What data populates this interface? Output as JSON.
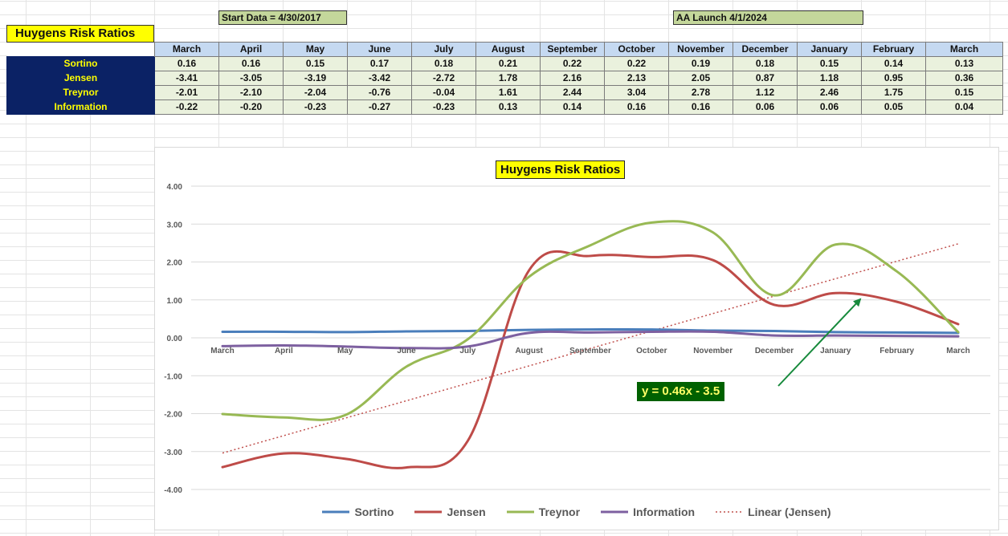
{
  "header": {
    "start_note": "Start Data = 4/30/2017",
    "launch_note": "AA Launch 4/1/2024",
    "sheet_title": "Huygens Risk Ratios"
  },
  "table": {
    "months": [
      "March",
      "April",
      "May",
      "June",
      "July",
      "August",
      "September",
      "October",
      "November",
      "December",
      "January",
      "February",
      "March"
    ],
    "rows": [
      {
        "label": "Sortino",
        "values": [
          "0.16",
          "0.16",
          "0.15",
          "0.17",
          "0.18",
          "0.21",
          "0.22",
          "0.22",
          "0.19",
          "0.18",
          "0.15",
          "0.14",
          "0.13"
        ]
      },
      {
        "label": "Jensen",
        "values": [
          "-3.41",
          "-3.05",
          "-3.19",
          "-3.42",
          "-2.72",
          "1.78",
          "2.16",
          "2.13",
          "2.05",
          "0.87",
          "1.18",
          "0.95",
          "0.36"
        ]
      },
      {
        "label": "Treynor",
        "values": [
          "-2.01",
          "-2.10",
          "-2.04",
          "-0.76",
          "-0.04",
          "1.61",
          "2.44",
          "3.04",
          "2.78",
          "1.12",
          "2.46",
          "1.75",
          "0.15"
        ]
      },
      {
        "label": "Information",
        "values": [
          "-0.22",
          "-0.20",
          "-0.23",
          "-0.27",
          "-0.23",
          "0.13",
          "0.14",
          "0.16",
          "0.16",
          "0.06",
          "0.06",
          "0.05",
          "0.04"
        ]
      }
    ]
  },
  "chart_data": {
    "type": "line",
    "title": "Huygens Risk Ratios",
    "xlabel": "",
    "ylabel": "",
    "categories": [
      "March",
      "April",
      "May",
      "June",
      "July",
      "August",
      "September",
      "October",
      "November",
      "December",
      "January",
      "February",
      "March"
    ],
    "ylim": [
      -4,
      4
    ],
    "y_ticks": [
      "4.00",
      "3.00",
      "2.00",
      "1.00",
      "0.00",
      "-1.00",
      "-2.00",
      "-3.00",
      "-4.00"
    ],
    "grid": true,
    "legend_position": "bottom",
    "series": [
      {
        "name": "Sortino",
        "color": "#4a7ebb",
        "values": [
          0.16,
          0.16,
          0.15,
          0.17,
          0.18,
          0.21,
          0.22,
          0.22,
          0.19,
          0.18,
          0.15,
          0.14,
          0.13
        ]
      },
      {
        "name": "Jensen",
        "color": "#be4b48",
        "values": [
          -3.41,
          -3.05,
          -3.19,
          -3.42,
          -2.72,
          1.78,
          2.16,
          2.13,
          2.05,
          0.87,
          1.18,
          0.95,
          0.36
        ]
      },
      {
        "name": "Treynor",
        "color": "#98b954",
        "values": [
          -2.01,
          -2.1,
          -2.04,
          -0.76,
          -0.04,
          1.61,
          2.44,
          3.04,
          2.78,
          1.12,
          2.46,
          1.75,
          0.15
        ]
      },
      {
        "name": "Information",
        "color": "#7d60a0",
        "values": [
          -0.22,
          -0.2,
          -0.23,
          -0.27,
          -0.23,
          0.13,
          0.14,
          0.16,
          0.16,
          0.06,
          0.06,
          0.05,
          0.04
        ]
      }
    ],
    "trendline": {
      "name": "Linear (Jensen)",
      "color": "#c0504d",
      "slope": 0.46,
      "intercept": -3.5
    },
    "annotation": {
      "text": "y = 0.46x - 3.5",
      "color": "#006100"
    }
  }
}
